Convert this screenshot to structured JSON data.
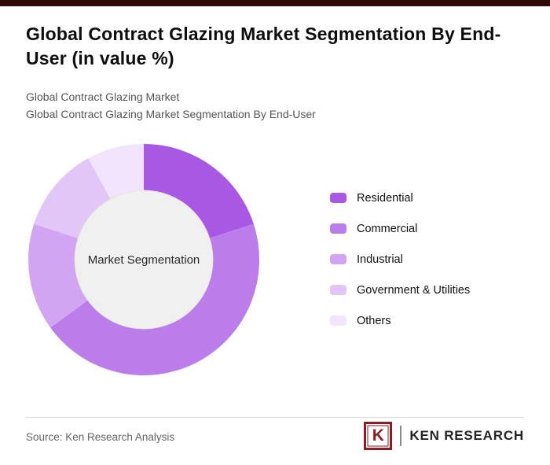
{
  "page": {
    "title": "Global Contract Glazing Market Segmentation By End-User (in value %)",
    "subtitle_1": "Global Contract Glazing Market",
    "subtitle_2": "Global Contract Glazing Market Segmentation By End-User",
    "source": "Source: Ken Research Analysis",
    "logo": {
      "mark": "K",
      "text": "KEN RESEARCH"
    },
    "accent_bar_color": "#320a0a"
  },
  "chart_data": {
    "type": "pie",
    "subtype": "donut",
    "title": "Global Contract Glazing Market Segmentation By End-User (in value %)",
    "center_label": "Market Segmentation",
    "categories": [
      "Residential",
      "Commercial",
      "Industrial",
      "Government & Utilities",
      "Others"
    ],
    "values": [
      20,
      45,
      15,
      12,
      8
    ],
    "unit": "value %",
    "colors": [
      "#a958e3",
      "#ba7dea",
      "#d2a5f2",
      "#e3c6f8",
      "#f2e4fc"
    ],
    "legend_position": "right",
    "start_angle_deg": -90,
    "direction": "clockwise",
    "hole_fill": "#f0f0f0"
  }
}
